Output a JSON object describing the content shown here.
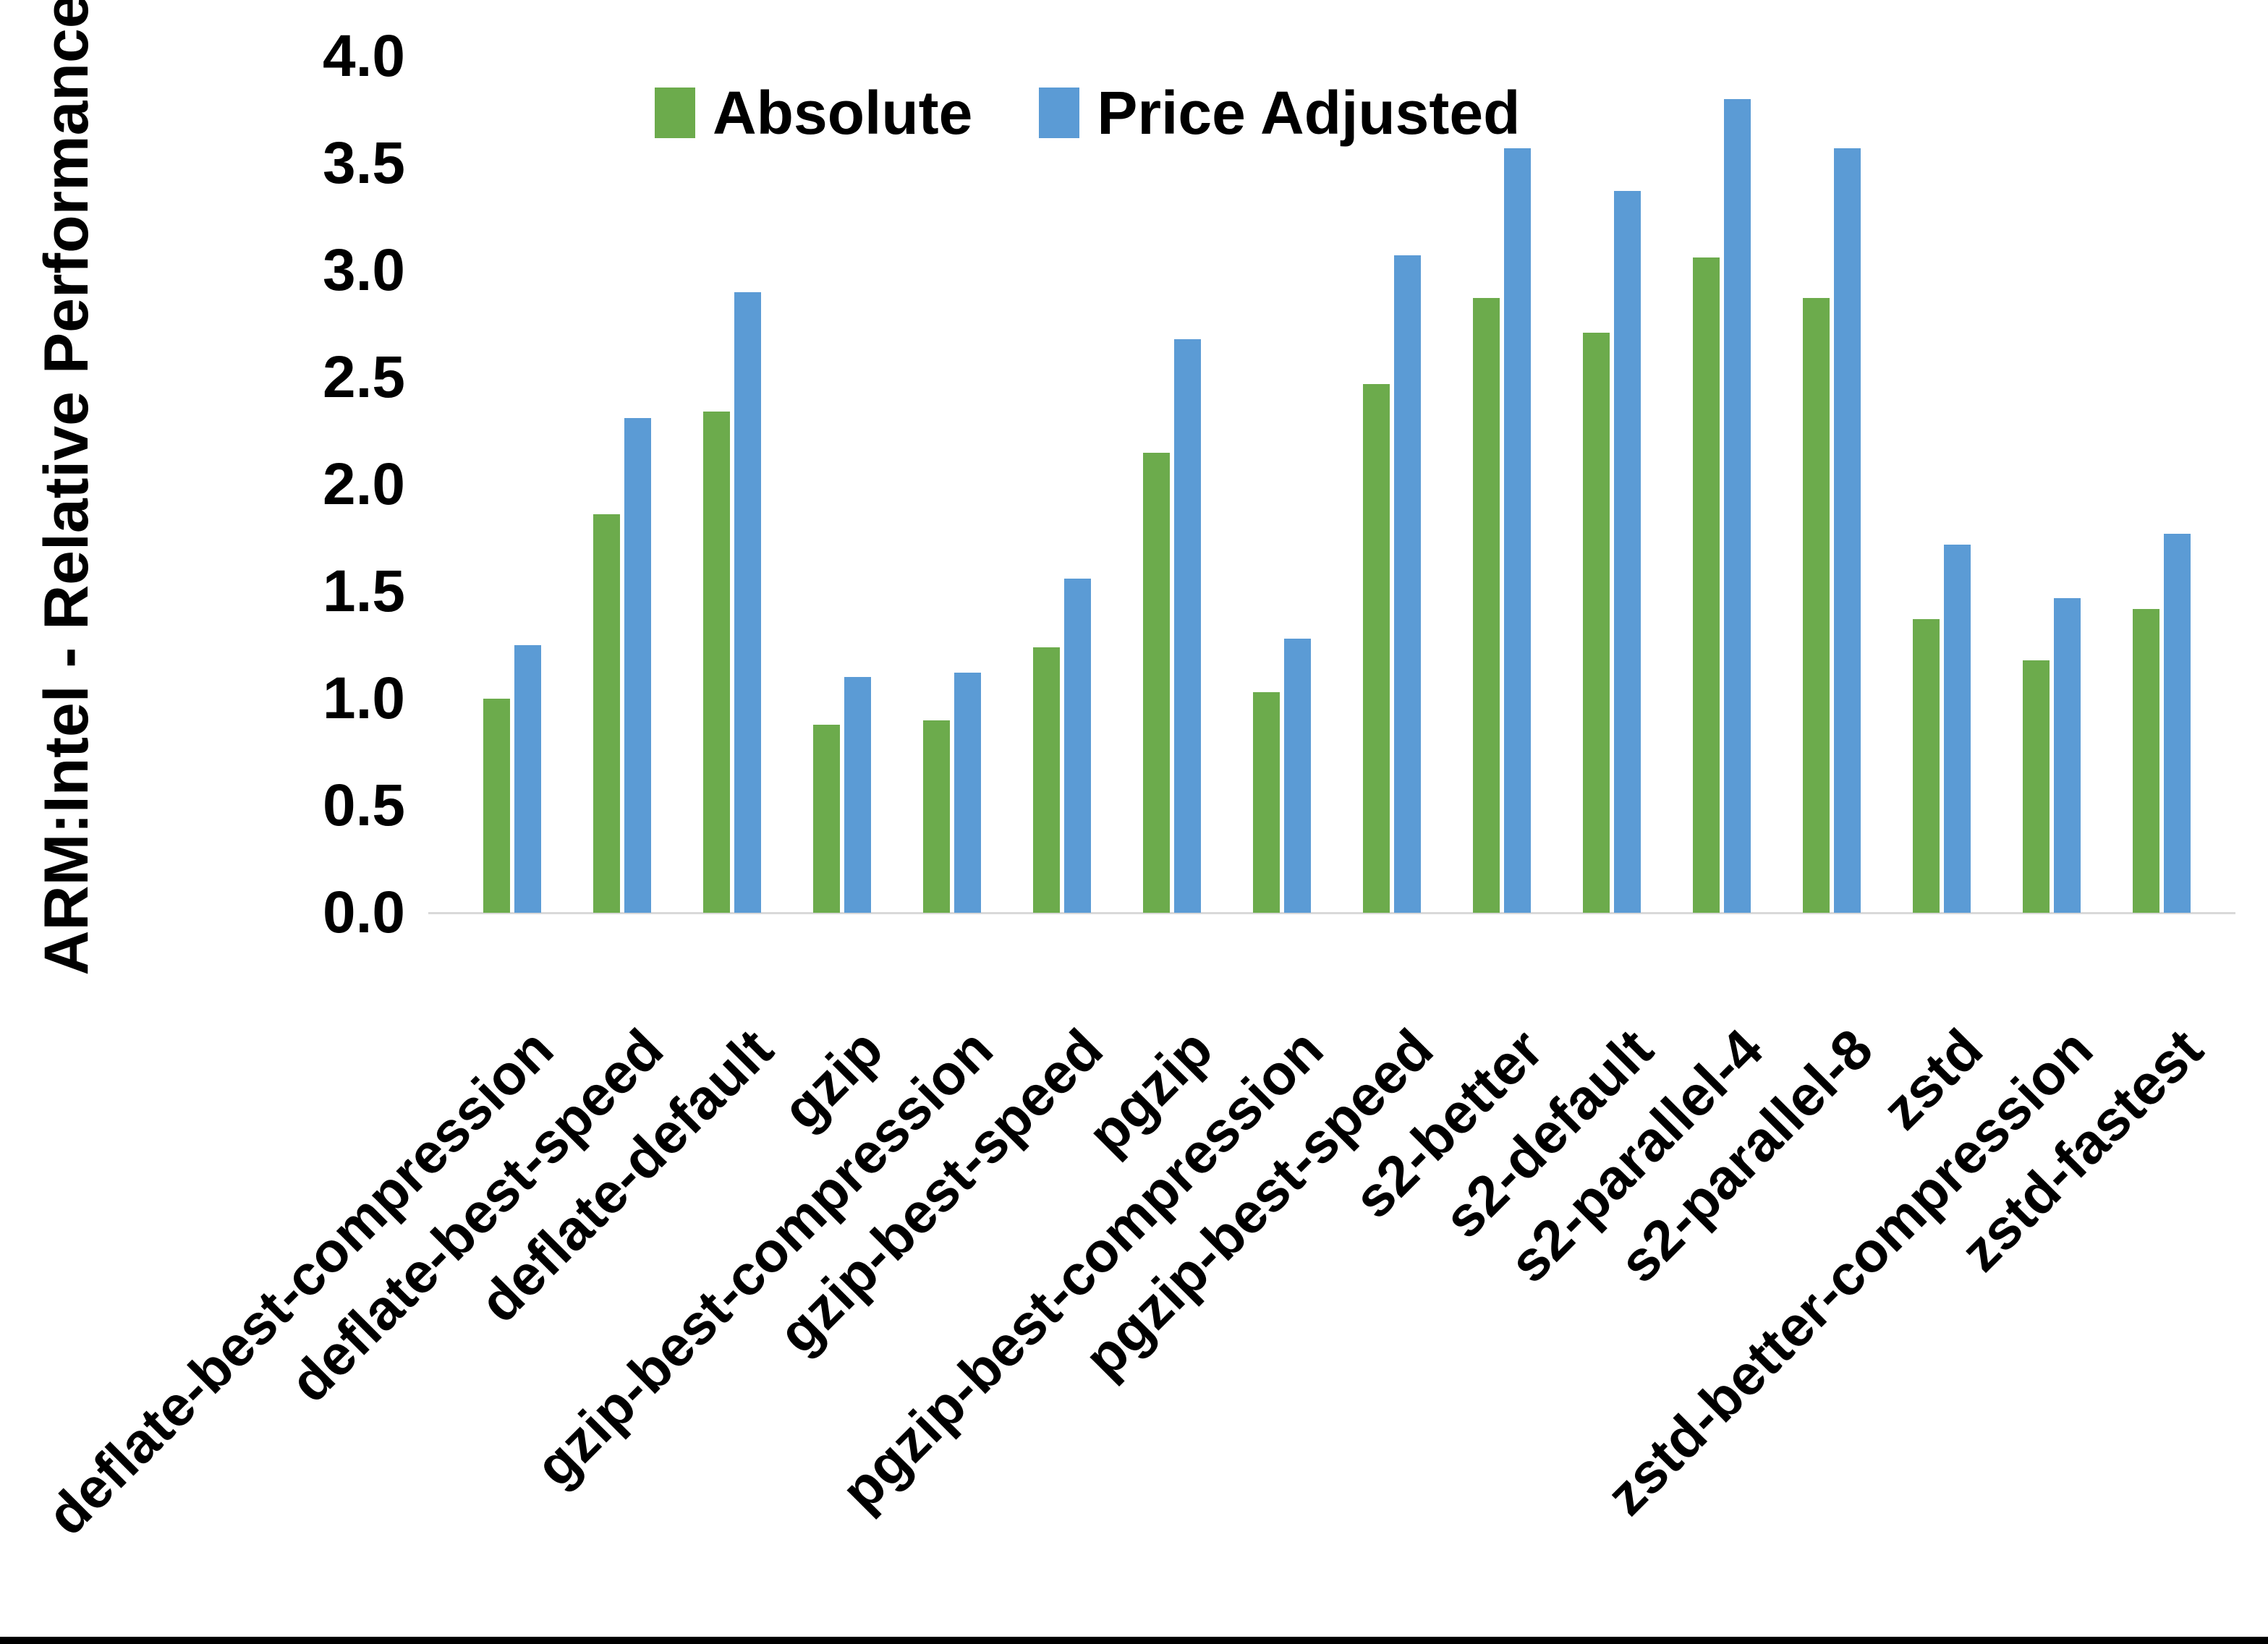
{
  "figure": {
    "background_color": "#FFFFFF",
    "axis_line_color": "#D9D9D9",
    "bottom_border_color": "#000000",
    "text_color": "#000000"
  },
  "legend": {
    "items": [
      {
        "label": "Absolute",
        "color": "#6CAB4C"
      },
      {
        "label": "Price Adjusted",
        "color": "#5B9BD5"
      }
    ]
  },
  "chart_data": {
    "type": "bar",
    "title": "",
    "xlabel": "",
    "ylabel": "ARM:Intel - Relative Performance",
    "ylim": [
      0.0,
      4.0
    ],
    "ytick_step": 0.5,
    "grid": false,
    "legend_position": "top-center",
    "categories": [
      "deflate-best-compression",
      "deflate-best-speed",
      "deflate-default",
      "gzip",
      "gzip-best-compression",
      "gzip-best-speed",
      "pgzip",
      "pgzip-best-compression",
      "pgzip-best-speed",
      "s2-better",
      "s2-default",
      "s2-parallel-4",
      "s2-parallel-8",
      "zstd",
      "zstd-better-compression",
      "zstd-fastest"
    ],
    "series": [
      {
        "name": "Absolute",
        "color": "#6CAB4C",
        "values": [
          1.0,
          1.86,
          2.34,
          0.88,
          0.9,
          1.24,
          2.15,
          1.03,
          2.47,
          2.87,
          2.71,
          3.06,
          2.87,
          1.37,
          1.18,
          1.42
        ]
      },
      {
        "name": "Price Adjusted",
        "color": "#5B9BD5",
        "values": [
          1.25,
          2.31,
          2.9,
          1.1,
          1.12,
          1.56,
          2.68,
          1.28,
          3.07,
          3.57,
          3.37,
          3.8,
          3.57,
          1.72,
          1.47,
          1.77
        ]
      }
    ]
  }
}
